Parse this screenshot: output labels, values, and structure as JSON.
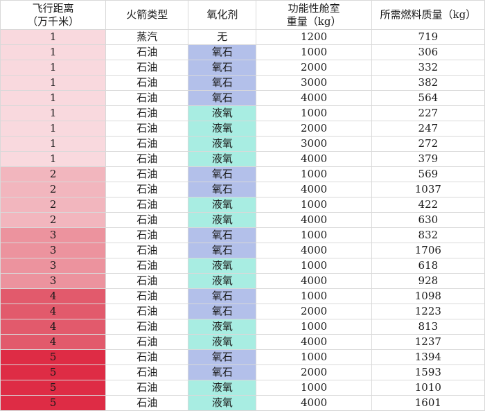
{
  "table": {
    "headers": [
      [
        "飞行距离",
        "（万千米）"
      ],
      [
        "火箭类型"
      ],
      [
        "氧化剂"
      ],
      [
        "功能性舱室",
        "重量（kg）"
      ],
      [
        "所需燃料质量（kg）"
      ]
    ],
    "distance_colors": {
      "1": "#f9d9de",
      "2": "#f2b6be",
      "3": "#ec939e",
      "4": "#e25a6c",
      "5": "#de2c45"
    },
    "oxidizer_colors": {
      "无": "#ffffff",
      "氧石": "#b3c0ea",
      "液氧": "#a8ede2"
    },
    "rows": [
      [
        "1",
        "蒸汽",
        "无",
        "1200",
        "719"
      ],
      [
        "1",
        "石油",
        "氧石",
        "1000",
        "306"
      ],
      [
        "1",
        "石油",
        "氧石",
        "2000",
        "332"
      ],
      [
        "1",
        "石油",
        "氧石",
        "3000",
        "382"
      ],
      [
        "1",
        "石油",
        "氧石",
        "4000",
        "564"
      ],
      [
        "1",
        "石油",
        "液氧",
        "1000",
        "227"
      ],
      [
        "1",
        "石油",
        "液氧",
        "2000",
        "247"
      ],
      [
        "1",
        "石油",
        "液氧",
        "3000",
        "272"
      ],
      [
        "1",
        "石油",
        "液氧",
        "4000",
        "379"
      ],
      [
        "2",
        "石油",
        "氧石",
        "1000",
        "569"
      ],
      [
        "2",
        "石油",
        "氧石",
        "4000",
        "1037"
      ],
      [
        "2",
        "石油",
        "液氧",
        "1000",
        "422"
      ],
      [
        "2",
        "石油",
        "液氧",
        "4000",
        "630"
      ],
      [
        "3",
        "石油",
        "氧石",
        "1000",
        "832"
      ],
      [
        "3",
        "石油",
        "氧石",
        "4000",
        "1706"
      ],
      [
        "3",
        "石油",
        "液氧",
        "1000",
        "618"
      ],
      [
        "3",
        "石油",
        "液氧",
        "4000",
        "928"
      ],
      [
        "4",
        "石油",
        "氧石",
        "1000",
        "1098"
      ],
      [
        "4",
        "石油",
        "氧石",
        "2000",
        "1223"
      ],
      [
        "4",
        "石油",
        "液氧",
        "1000",
        "813"
      ],
      [
        "4",
        "石油",
        "液氧",
        "4000",
        "1237"
      ],
      [
        "5",
        "石油",
        "氧石",
        "1000",
        "1394"
      ],
      [
        "5",
        "石油",
        "氧石",
        "2000",
        "1593"
      ],
      [
        "5",
        "石油",
        "液氧",
        "1000",
        "1010"
      ],
      [
        "5",
        "石油",
        "液氧",
        "4000",
        "1601"
      ]
    ]
  }
}
